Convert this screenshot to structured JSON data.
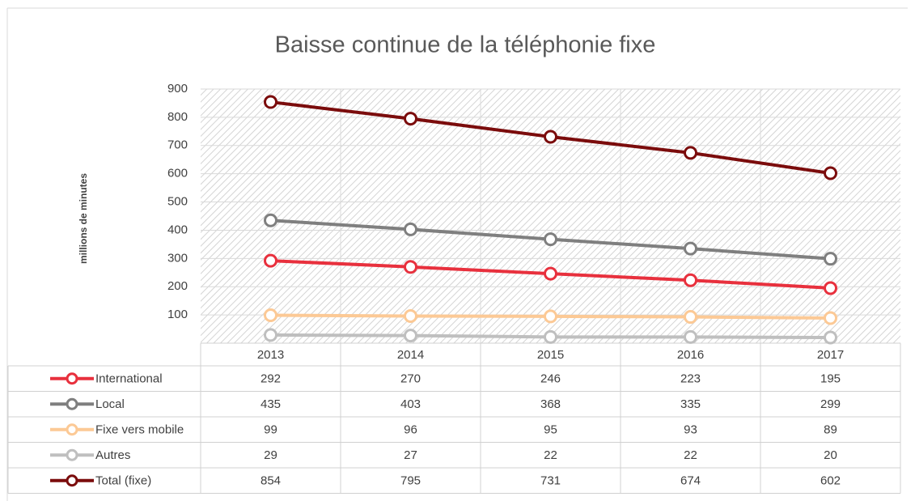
{
  "chart_data": {
    "type": "line",
    "title": "Baisse continue de la téléphonie fixe",
    "y_label": "millions de minutes",
    "categories": [
      "2013",
      "2014",
      "2015",
      "2016",
      "2017"
    ],
    "series": [
      {
        "name": "International",
        "color": "#e8303d",
        "values": [
          292,
          270,
          246,
          223,
          195
        ]
      },
      {
        "name": "Local",
        "color": "#7f7f7f",
        "values": [
          435,
          403,
          368,
          335,
          299
        ]
      },
      {
        "name": "Fixe vers mobile",
        "color": "#fcc995",
        "values": [
          99,
          96,
          95,
          93,
          89
        ]
      },
      {
        "name": "Autres",
        "color": "#bfbfbf",
        "values": [
          29,
          27,
          22,
          22,
          20
        ]
      },
      {
        "name": "Total (fixe)",
        "color": "#7b0c0c",
        "values": [
          854,
          795,
          731,
          674,
          602
        ]
      }
    ],
    "ylim": [
      0,
      900
    ],
    "yticks": [
      100,
      200,
      300,
      400,
      500,
      600,
      700,
      800,
      900
    ],
    "grid": true
  }
}
